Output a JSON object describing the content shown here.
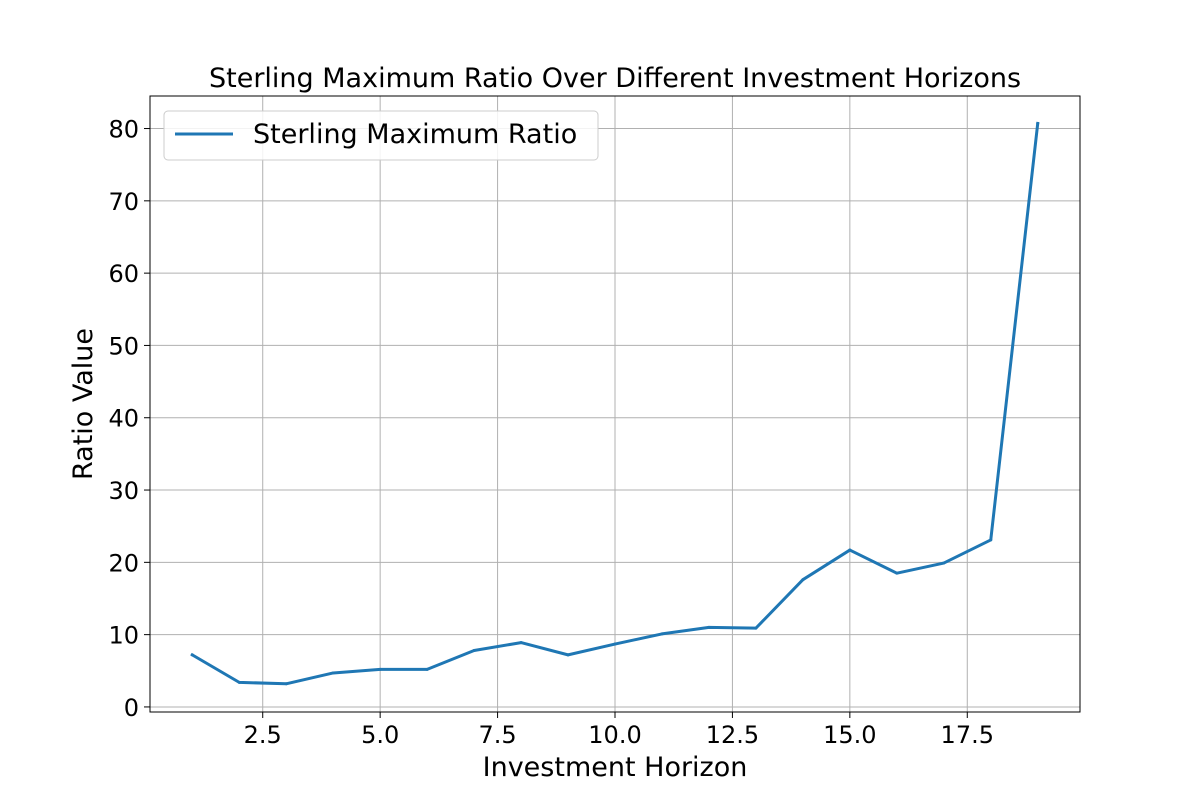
{
  "chart_data": {
    "type": "line",
    "title": "Sterling Maximum Ratio Over Different Investment Horizons",
    "xlabel": "Investment Horizon",
    "ylabel": "Ratio Value",
    "xlim": [
      0.1,
      19.9
    ],
    "ylim": [
      -0.7,
      84.5
    ],
    "xticks": [
      2.5,
      5.0,
      7.5,
      10.0,
      12.5,
      15.0,
      17.5
    ],
    "xtick_labels": [
      "2.5",
      "5.0",
      "7.5",
      "10.0",
      "12.5",
      "15.0",
      "17.5"
    ],
    "yticks": [
      0,
      10,
      20,
      30,
      40,
      50,
      60,
      70,
      80
    ],
    "ytick_labels": [
      "0",
      "10",
      "20",
      "30",
      "40",
      "50",
      "60",
      "70",
      "80"
    ],
    "grid": true,
    "legend_position": "upper-left",
    "series": [
      {
        "name": "Sterling Maximum Ratio",
        "color": "#1f77b4",
        "x": [
          1,
          2,
          3,
          4,
          5,
          6,
          7,
          8,
          9,
          10,
          11,
          12,
          13,
          14,
          15,
          16,
          17,
          18,
          19
        ],
        "values": [
          7.2,
          3.4,
          3.2,
          4.7,
          5.2,
          5.2,
          7.8,
          8.9,
          7.2,
          8.7,
          10.1,
          11.0,
          10.9,
          17.6,
          21.7,
          18.5,
          19.9,
          23.1,
          80.7
        ]
      }
    ]
  }
}
